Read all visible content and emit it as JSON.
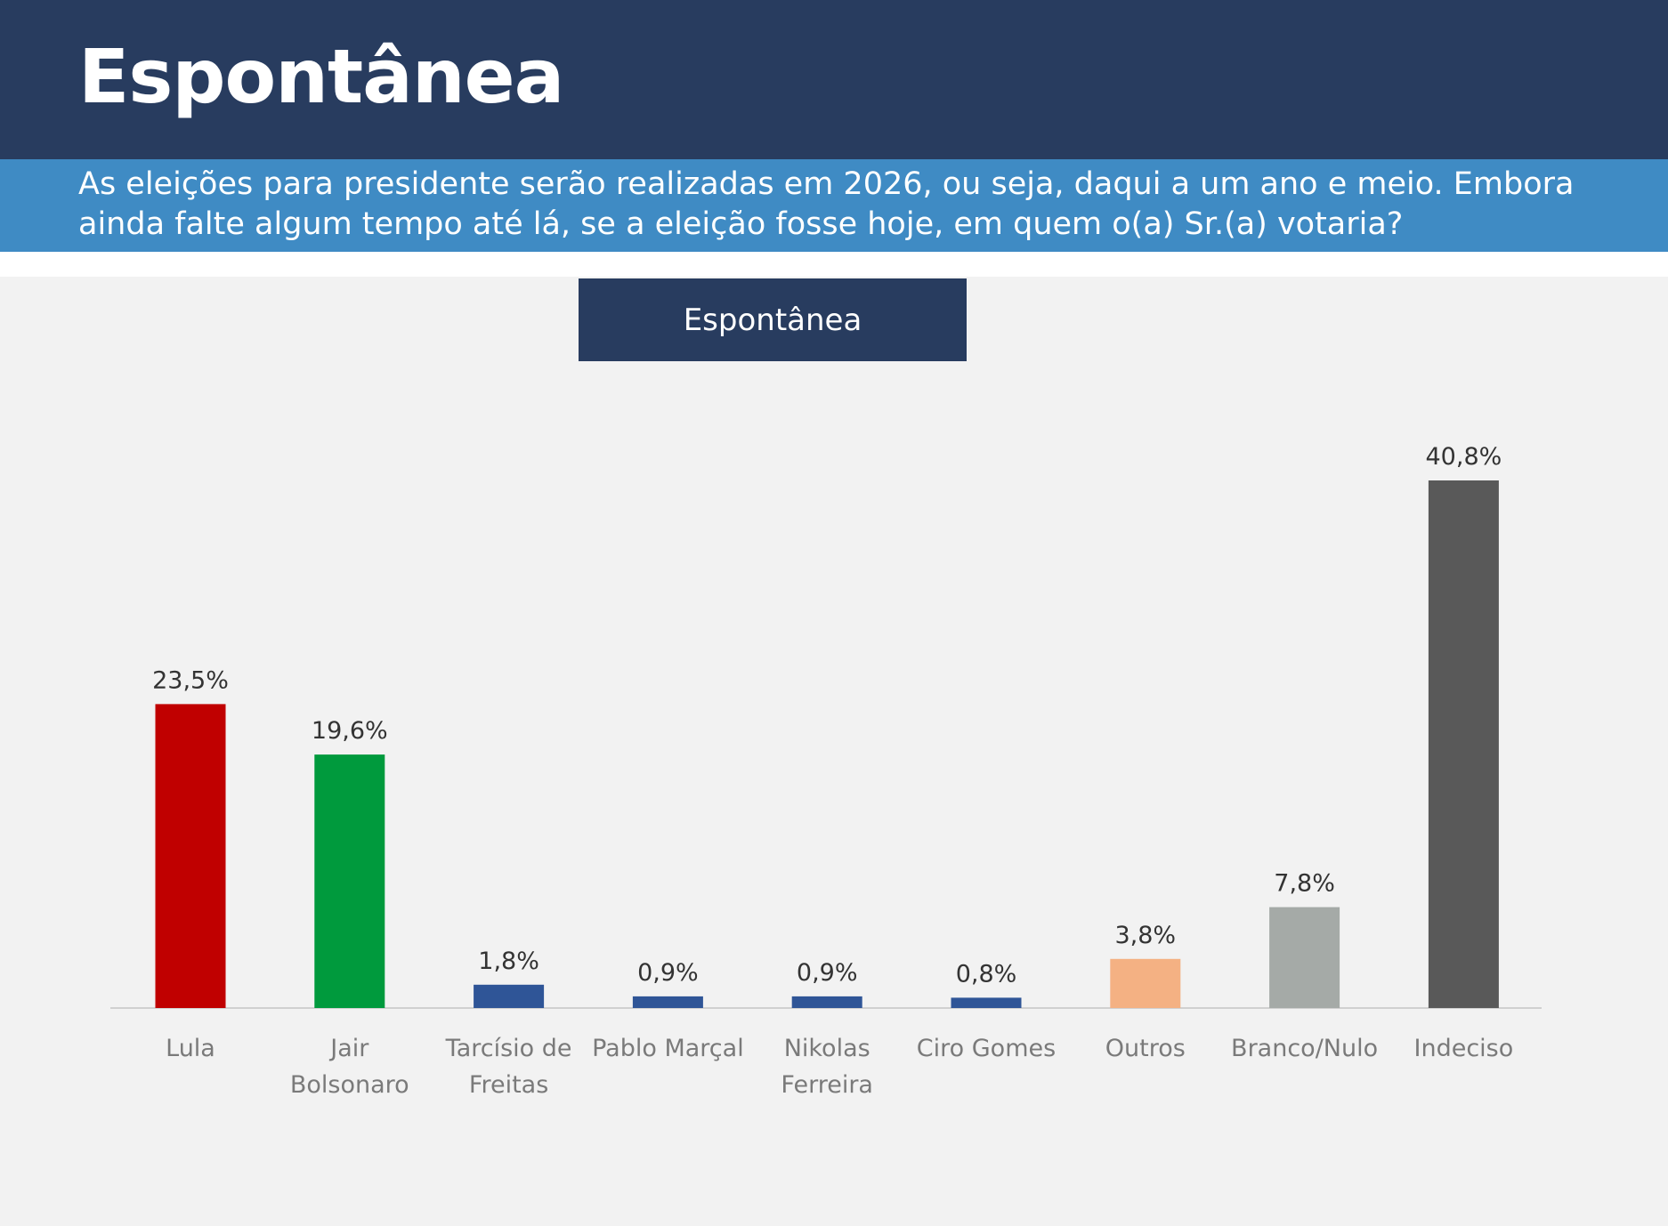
{
  "header": {
    "title": "Espontânea",
    "subtitle": "As eleições para presidente serão realizadas em 2026, ou seja, daqui a um ano e meio. Embora ainda falte algum tempo até lá, se a eleição fosse hoje, em quem o(a) Sr.(a) votaria?"
  },
  "colors": {
    "header_bg": "#283c5f",
    "subtitle_bg": "#3f8bc4",
    "panel_bg": "#f2f2f2"
  },
  "chart_data": {
    "type": "bar",
    "title": "Espontânea",
    "categories": [
      [
        "Lula"
      ],
      [
        "Jair",
        "Bolsonaro"
      ],
      [
        "Tarcísio de",
        "Freitas"
      ],
      [
        "Pablo Marçal"
      ],
      [
        "Nikolas",
        "Ferreira"
      ],
      [
        "Ciro Gomes"
      ],
      [
        "Outros"
      ],
      [
        "Branco/Nulo"
      ],
      [
        "Indeciso"
      ]
    ],
    "values": [
      23.5,
      19.6,
      1.8,
      0.9,
      0.9,
      0.8,
      3.8,
      7.8,
      40.8
    ],
    "value_labels": [
      "23,5%",
      "19,6%",
      "1,8%",
      "0,9%",
      "0,9%",
      "0,8%",
      "3,8%",
      "7,8%",
      "40,8%"
    ],
    "bar_colors": [
      "#c00000",
      "#009a3d",
      "#2f5597",
      "#2f5597",
      "#2f5597",
      "#2f5597",
      "#f4b183",
      "#a5aaa7",
      "#595959"
    ],
    "ylim": [
      0,
      40.8
    ],
    "grid": false,
    "legend": "none"
  }
}
